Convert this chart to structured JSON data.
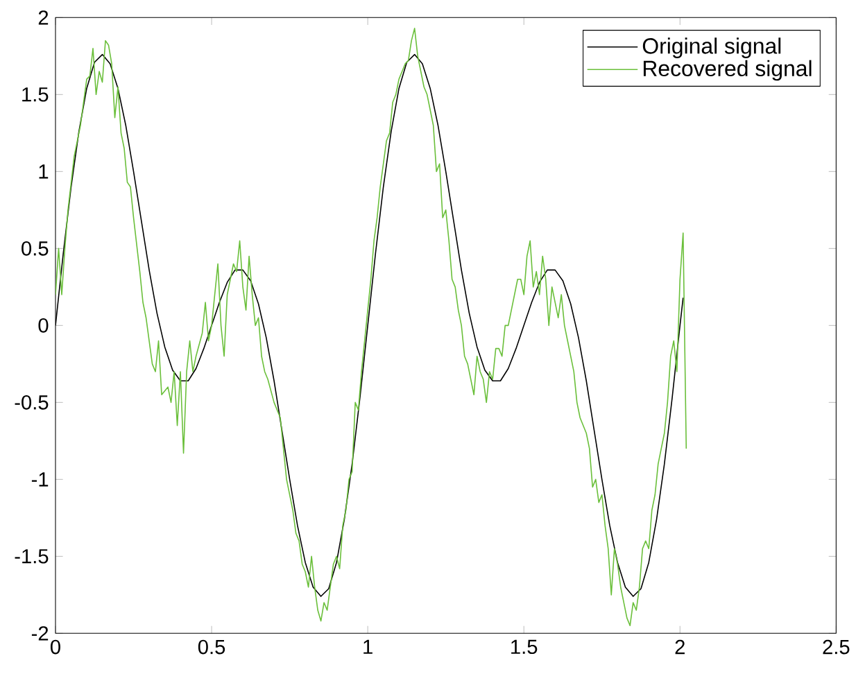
{
  "chart_data": {
    "type": "line",
    "xlim": [
      0,
      2.5
    ],
    "ylim": [
      -2,
      2
    ],
    "xticks": [
      0,
      0.5,
      1,
      1.5,
      2,
      2.5
    ],
    "yticks": [
      -2,
      -1.5,
      -1,
      -0.5,
      0,
      0.5,
      1,
      1.5,
      2
    ],
    "grid": false,
    "legend": "top right",
    "marker": "none",
    "line_style": "solid",
    "series": [
      {
        "name": "Original signal",
        "color": "#000000",
        "x": [
          0,
          0.025,
          0.05,
          0.075,
          0.1,
          0.125,
          0.15,
          0.175,
          0.2,
          0.225,
          0.25,
          0.275,
          0.3,
          0.325,
          0.35,
          0.375,
          0.4,
          0.425,
          0.45,
          0.475,
          0.5,
          0.525,
          0.55,
          0.575,
          0.6,
          0.625,
          0.65,
          0.675,
          0.7,
          0.725,
          0.75,
          0.775,
          0.8,
          0.825,
          0.85,
          0.875,
          0.9,
          0.925,
          0.95,
          0.975,
          1,
          1.025,
          1.05,
          1.075,
          1.1,
          1.125,
          1.15,
          1.175,
          1.2,
          1.225,
          1.25,
          1.275,
          1.3,
          1.325,
          1.35,
          1.375,
          1.4,
          1.425,
          1.45,
          1.475,
          1.5,
          1.525,
          1.55,
          1.575,
          1.6,
          1.625,
          1.65,
          1.675,
          1.7,
          1.725,
          1.75,
          1.775,
          1.8,
          1.825,
          1.85,
          1.875,
          1.9,
          1.925,
          1.95,
          1.975,
          2,
          2.01
        ],
        "values": [
          0,
          0.47,
          0.9,
          1.26,
          1.54,
          1.71,
          1.76,
          1.7,
          1.54,
          1.3,
          1.0,
          0.68,
          0.36,
          0.08,
          -0.14,
          -0.29,
          -0.36,
          -0.36,
          -0.28,
          -0.15,
          0,
          0.15,
          0.28,
          0.36,
          0.36,
          0.29,
          0.14,
          -0.08,
          -0.36,
          -0.68,
          -1.0,
          -1.3,
          -1.54,
          -1.7,
          -1.76,
          -1.71,
          -1.54,
          -1.26,
          -0.9,
          -0.47,
          0,
          0.47,
          0.9,
          1.26,
          1.54,
          1.71,
          1.76,
          1.7,
          1.54,
          1.3,
          1.0,
          0.68,
          0.36,
          0.08,
          -0.14,
          -0.29,
          -0.36,
          -0.36,
          -0.28,
          -0.15,
          0,
          0.15,
          0.28,
          0.36,
          0.36,
          0.29,
          0.14,
          -0.08,
          -0.36,
          -0.68,
          -1.0,
          -1.3,
          -1.54,
          -1.7,
          -1.76,
          -1.71,
          -1.54,
          -1.26,
          -0.9,
          -0.47,
          0,
          0.18
        ]
      },
      {
        "name": "Recovered signal",
        "color": "#6abf3a",
        "x": [
          0,
          0.01,
          0.02,
          0.03,
          0.04,
          0.06,
          0.08,
          0.1,
          0.11,
          0.12,
          0.13,
          0.14,
          0.15,
          0.16,
          0.17,
          0.18,
          0.19,
          0.2,
          0.21,
          0.22,
          0.23,
          0.24,
          0.25,
          0.27,
          0.28,
          0.29,
          0.3,
          0.31,
          0.32,
          0.33,
          0.34,
          0.36,
          0.37,
          0.38,
          0.39,
          0.4,
          0.41,
          0.42,
          0.43,
          0.44,
          0.45,
          0.47,
          0.48,
          0.49,
          0.5,
          0.51,
          0.52,
          0.53,
          0.54,
          0.55,
          0.56,
          0.57,
          0.58,
          0.59,
          0.6,
          0.61,
          0.62,
          0.63,
          0.64,
          0.65,
          0.66,
          0.67,
          0.68,
          0.7,
          0.72,
          0.74,
          0.76,
          0.77,
          0.78,
          0.79,
          0.8,
          0.81,
          0.82,
          0.83,
          0.84,
          0.85,
          0.86,
          0.87,
          0.88,
          0.89,
          0.9,
          0.91,
          0.92,
          0.93,
          0.94,
          0.95,
          0.96,
          0.97,
          0.98,
          0.99,
          1.0,
          1.01,
          1.02,
          1.03,
          1.04,
          1.05,
          1.06,
          1.07,
          1.08,
          1.09,
          1.1,
          1.11,
          1.12,
          1.13,
          1.14,
          1.15,
          1.16,
          1.17,
          1.18,
          1.19,
          1.2,
          1.21,
          1.22,
          1.23,
          1.24,
          1.25,
          1.26,
          1.27,
          1.28,
          1.29,
          1.3,
          1.31,
          1.32,
          1.33,
          1.34,
          1.35,
          1.36,
          1.37,
          1.38,
          1.39,
          1.4,
          1.41,
          1.42,
          1.43,
          1.44,
          1.45,
          1.46,
          1.47,
          1.48,
          1.49,
          1.5,
          1.51,
          1.52,
          1.53,
          1.54,
          1.55,
          1.56,
          1.57,
          1.58,
          1.59,
          1.6,
          1.61,
          1.62,
          1.63,
          1.64,
          1.65,
          1.66,
          1.67,
          1.68,
          1.7,
          1.71,
          1.72,
          1.73,
          1.74,
          1.75,
          1.76,
          1.77,
          1.78,
          1.79,
          1.8,
          1.81,
          1.82,
          1.83,
          1.84,
          1.85,
          1.86,
          1.87,
          1.88,
          1.89,
          1.9,
          1.91,
          1.92,
          1.93,
          1.94,
          1.95,
          1.96,
          1.97,
          1.98,
          1.99,
          2.0,
          2.01,
          2.02
        ],
        "values": [
          0.2,
          0.5,
          0.2,
          0.5,
          0.75,
          1.1,
          1.3,
          1.6,
          1.62,
          1.8,
          1.5,
          1.65,
          1.58,
          1.85,
          1.82,
          1.7,
          1.35,
          1.55,
          1.25,
          1.15,
          0.93,
          0.9,
          0.7,
          0.35,
          0.15,
          0.05,
          -0.1,
          -0.25,
          -0.3,
          -0.1,
          -0.45,
          -0.4,
          -0.5,
          -0.3,
          -0.65,
          -0.3,
          -0.83,
          -0.3,
          -0.1,
          -0.3,
          -0.2,
          -0.05,
          0.15,
          -0.1,
          0.0,
          0.2,
          0.4,
          0.0,
          -0.2,
          0.2,
          0.3,
          0.4,
          0.35,
          0.55,
          0.25,
          0.1,
          0.45,
          0.2,
          0.0,
          0.05,
          -0.2,
          -0.3,
          -0.35,
          -0.5,
          -0.6,
          -1.0,
          -1.2,
          -1.35,
          -1.4,
          -1.55,
          -1.6,
          -1.7,
          -1.5,
          -1.7,
          -1.85,
          -1.92,
          -1.8,
          -1.85,
          -1.7,
          -1.55,
          -1.5,
          -1.58,
          -1.3,
          -1.2,
          -1.0,
          -0.95,
          -0.5,
          -0.55,
          -0.3,
          -0.1,
          0.1,
          0.3,
          0.55,
          0.7,
          0.9,
          1.05,
          1.2,
          1.25,
          1.45,
          1.5,
          1.6,
          1.65,
          1.7,
          1.72,
          1.85,
          1.93,
          1.75,
          1.65,
          1.55,
          1.5,
          1.4,
          1.3,
          1.0,
          1.05,
          0.7,
          0.75,
          0.55,
          0.3,
          0.25,
          0.1,
          0.0,
          -0.2,
          -0.25,
          -0.35,
          -0.45,
          -0.2,
          -0.3,
          -0.35,
          -0.5,
          -0.3,
          -0.35,
          -0.15,
          -0.15,
          -0.2,
          0.0,
          0.0,
          0.1,
          0.2,
          0.3,
          0.3,
          0.2,
          0.45,
          0.55,
          0.25,
          0.35,
          0.2,
          0.45,
          0.3,
          0.0,
          0.25,
          0.15,
          0.05,
          0.2,
          0.0,
          -0.1,
          -0.2,
          -0.3,
          -0.5,
          -0.6,
          -0.7,
          -0.8,
          -1.05,
          -1.0,
          -1.15,
          -1.1,
          -1.3,
          -1.45,
          -1.75,
          -1.45,
          -1.55,
          -1.7,
          -1.8,
          -1.9,
          -1.95,
          -1.8,
          -1.85,
          -1.7,
          -1.45,
          -1.4,
          -1.45,
          -1.2,
          -1.1,
          -0.9,
          -0.8,
          -0.7,
          -0.5,
          -0.2,
          -0.1,
          -0.3,
          0.3,
          0.6,
          -0.8
        ]
      }
    ]
  }
}
